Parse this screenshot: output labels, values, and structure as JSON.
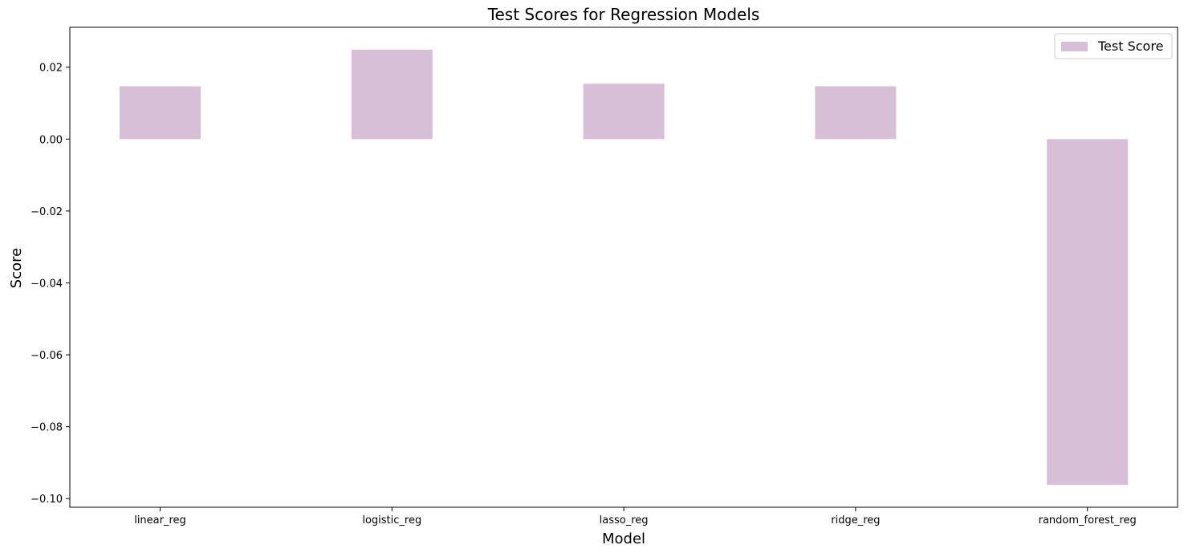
{
  "chart_data": {
    "type": "bar",
    "title": "Test Scores for Regression Models",
    "xlabel": "Model",
    "ylabel": "Score",
    "categories": [
      "linear_reg",
      "logistic_reg",
      "lasso_reg",
      "ridge_reg",
      "random_forest_reg"
    ],
    "series": [
      {
        "name": "Test Score",
        "values": [
          0.0147,
          0.0249,
          0.0154,
          0.0147,
          -0.0962
        ]
      }
    ],
    "ylim": [
      -0.1024,
      0.0311
    ],
    "yticks": [
      0.02,
      0.0,
      -0.02,
      -0.04,
      -0.06,
      -0.08,
      -0.1
    ],
    "ytick_labels": [
      "0.02",
      "0.00",
      "−0.02",
      "−0.04",
      "−0.06",
      "−0.08",
      "−0.10"
    ],
    "grid": false,
    "legend_position": "top-right",
    "colors": {
      "bar": "#d8bfd8",
      "axis": "#000000",
      "background": "#ffffff"
    }
  }
}
